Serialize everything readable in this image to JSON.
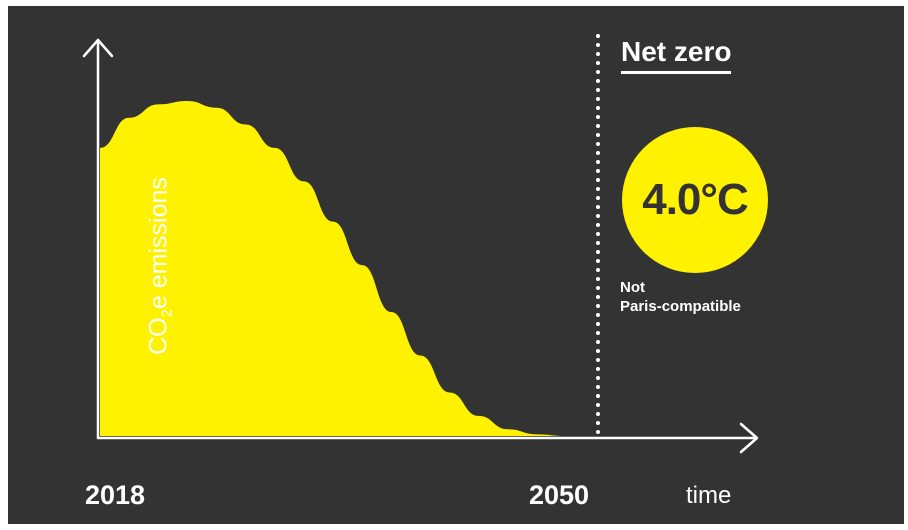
{
  "chart_data": {
    "type": "area",
    "x_start_label": "2018",
    "x_end_label": "2050",
    "xlabel": "time",
    "ylabel_main": "CO",
    "ylabel_sub": "2",
    "ylabel_rest": "e emissions",
    "x": [
      2018,
      2020,
      2022,
      2024,
      2026,
      2028,
      2030,
      2032,
      2034,
      2036,
      2038,
      2040,
      2042,
      2044,
      2046,
      2048,
      2050
    ],
    "values": [
      0.86,
      0.95,
      0.99,
      1.0,
      0.98,
      0.93,
      0.86,
      0.76,
      0.64,
      0.51,
      0.37,
      0.24,
      0.13,
      0.06,
      0.02,
      0.005,
      0.0
    ],
    "xlim": [
      2018,
      2050
    ],
    "ylim": [
      0,
      1.1
    ],
    "grid": false,
    "legend": "none"
  },
  "annotations": {
    "net_zero": "Net zero",
    "temperature": "4.0°C",
    "note_line1": "Not",
    "note_line2": "Paris-compatible"
  },
  "colors": {
    "background": "#333333",
    "area": "#FFF200",
    "text": "#FFFFFF"
  }
}
